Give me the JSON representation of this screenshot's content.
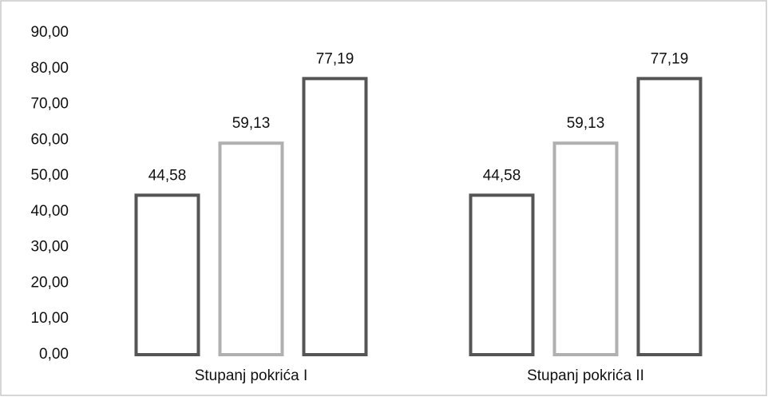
{
  "chart_data": {
    "type": "bar",
    "categories": [
      "Stupanj pokrića I",
      "Stupanj pokrića II"
    ],
    "series": [
      {
        "color": "#555555",
        "values": [
          44.58,
          44.58
        ],
        "value_labels": [
          "44,58",
          "44,58"
        ]
      },
      {
        "color": "#b0b0b0",
        "values": [
          59.13,
          59.13
        ],
        "value_labels": [
          "59,13",
          "59,13"
        ]
      },
      {
        "color": "#555555",
        "values": [
          77.19,
          77.19
        ],
        "value_labels": [
          "77,19",
          "77,19"
        ]
      }
    ],
    "ylim": [
      0,
      90
    ],
    "yticks": [
      {
        "value": 0,
        "label": "0,00"
      },
      {
        "value": 10,
        "label": "10,00"
      },
      {
        "value": 20,
        "label": "20,00"
      },
      {
        "value": 30,
        "label": "30,00"
      },
      {
        "value": 40,
        "label": "40,00"
      },
      {
        "value": 50,
        "label": "50,00"
      },
      {
        "value": 60,
        "label": "60,00"
      },
      {
        "value": 70,
        "label": "70,00"
      },
      {
        "value": 80,
        "label": "80,00"
      },
      {
        "value": 90,
        "label": "90,00"
      }
    ],
    "grid": false
  }
}
